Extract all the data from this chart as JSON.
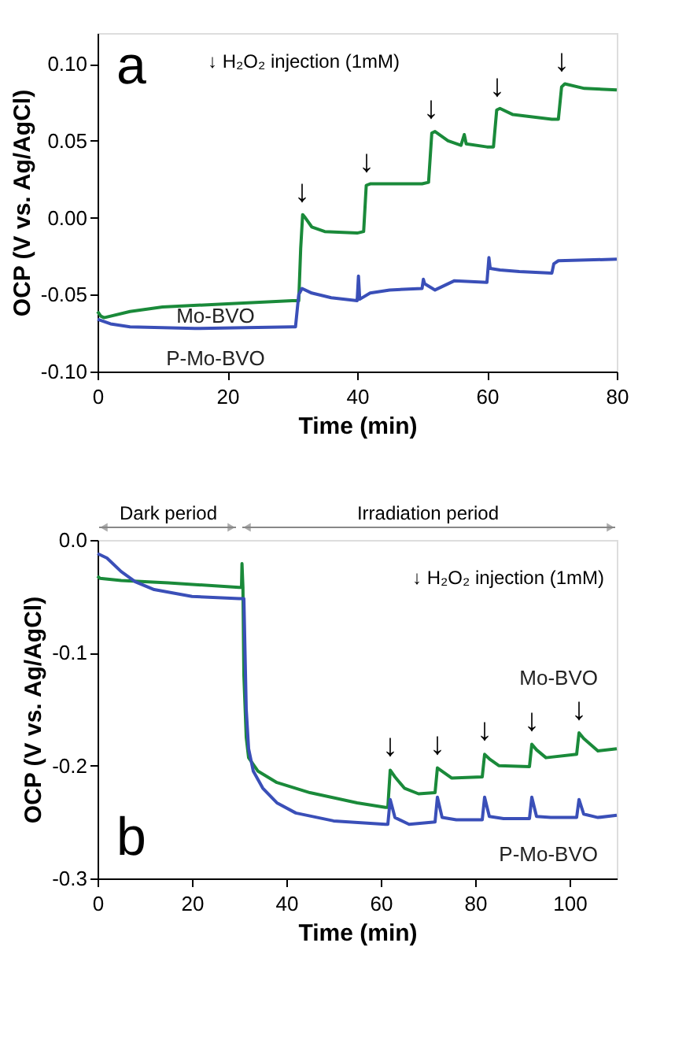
{
  "chart_data": [
    {
      "type": "line",
      "xlabel": "Time (min)",
      "ylabel": "OCP (V vs. Ag/AgCl)",
      "xlim": [
        0,
        80
      ],
      "xticks": [
        0,
        20,
        40,
        60,
        80
      ],
      "ylim": [
        -0.1,
        0.12
      ],
      "yticks": [
        {
          "value": -0.1,
          "label": "-0.10"
        },
        {
          "value": -0.05,
          "label": "-0.05"
        },
        {
          "value": 0,
          "label": "0.00"
        },
        {
          "value": 0.05,
          "label": "0.05"
        },
        {
          "value": 0.1,
          "label": "0.10"
        }
      ],
      "grid": false,
      "legend": false,
      "marker": "none",
      "line_style": "solid",
      "series": [
        {
          "name": "Mo-BVO",
          "color": "#1a8a3a",
          "x": [
            0,
            0.5,
            1,
            5,
            10,
            20,
            30,
            31,
            31.3,
            31.6,
            32,
            33,
            35,
            40,
            41,
            41.4,
            42,
            50,
            51,
            51.5,
            52,
            54,
            56,
            56.5,
            56.8,
            60,
            61,
            61.5,
            62,
            64,
            70,
            71,
            71.5,
            72,
            75,
            80
          ],
          "values": [
            -0.061,
            -0.064,
            -0.065,
            -0.061,
            -0.058,
            -0.056,
            -0.054,
            -0.054,
            -0.02,
            0.002,
            0.0,
            -0.006,
            -0.009,
            -0.01,
            -0.009,
            0.021,
            0.022,
            0.022,
            0.023,
            0.055,
            0.056,
            0.05,
            0.047,
            0.054,
            0.048,
            0.046,
            0.046,
            0.07,
            0.071,
            0.067,
            0.064,
            0.064,
            0.085,
            0.087,
            0.084,
            0.083
          ]
        },
        {
          "name": "P-Mo-BVO",
          "color": "#3a4fb8",
          "x": [
            0,
            2,
            5,
            15,
            30,
            30.5,
            31,
            31.5,
            33,
            36,
            40,
            40.2,
            40.4,
            42,
            45,
            50,
            50.2,
            50.4,
            52,
            55,
            60,
            60.3,
            60.5,
            62,
            65,
            70,
            70.3,
            71,
            80
          ],
          "values": [
            -0.066,
            -0.069,
            -0.071,
            -0.072,
            -0.071,
            -0.071,
            -0.05,
            -0.046,
            -0.049,
            -0.052,
            -0.054,
            -0.038,
            -0.053,
            -0.049,
            -0.047,
            -0.046,
            -0.04,
            -0.043,
            -0.047,
            -0.041,
            -0.042,
            -0.026,
            -0.033,
            -0.034,
            -0.035,
            -0.036,
            -0.03,
            -0.028,
            -0.027
          ]
        }
      ],
      "annotations": [
        "a",
        "↓ H₂O₂ injection (1mM)",
        "↓",
        "↓",
        "↓",
        "↓",
        "↓"
      ]
    },
    {
      "type": "line",
      "xlabel": "Time (min)",
      "ylabel": "OCP (V vs. Ag/AgCl)",
      "xlim": [
        0,
        110
      ],
      "xticks": [
        0,
        20,
        40,
        60,
        80,
        100
      ],
      "ylim": [
        -0.3,
        0
      ],
      "yticks": [
        {
          "value": -0.3,
          "label": "-0.3"
        },
        {
          "value": -0.2,
          "label": "-0.2"
        },
        {
          "value": -0.1,
          "label": "-0.1"
        },
        {
          "value": 0,
          "label": "0.0"
        }
      ],
      "grid": false,
      "legend": false,
      "marker": "none",
      "line_style": "solid",
      "series": [
        {
          "name": "Mo-BVO",
          "color": "#1a8a3a",
          "x": [
            0,
            0.5,
            5,
            15,
            30,
            30.5,
            30.6,
            30.8,
            31,
            31.5,
            32,
            34,
            38,
            45,
            55,
            61,
            61.5,
            62,
            63,
            65,
            68,
            71.5,
            72,
            73,
            75,
            81.5,
            82,
            83,
            85,
            91.5,
            92,
            93,
            95,
            101.5,
            102,
            103,
            106,
            110
          ],
          "values": [
            -0.032,
            -0.034,
            -0.036,
            -0.038,
            -0.042,
            -0.042,
            -0.021,
            -0.042,
            -0.12,
            -0.175,
            -0.193,
            -0.205,
            -0.215,
            -0.224,
            -0.233,
            -0.237,
            -0.237,
            -0.204,
            -0.21,
            -0.22,
            -0.225,
            -0.224,
            -0.202,
            -0.205,
            -0.211,
            -0.21,
            -0.19,
            -0.194,
            -0.2,
            -0.201,
            -0.181,
            -0.186,
            -0.193,
            -0.19,
            -0.171,
            -0.176,
            -0.187,
            -0.185
          ]
        },
        {
          "name": "P-Mo-BVO",
          "color": "#3a4fb8",
          "x": [
            0,
            2,
            5,
            8,
            12,
            20,
            30,
            31,
            31.5,
            32,
            33,
            35,
            38,
            42,
            50,
            61,
            61.5,
            62,
            63,
            66,
            71.5,
            72,
            73,
            76,
            81.5,
            82,
            83,
            86,
            91.5,
            92,
            93,
            96,
            101.5,
            102,
            103,
            106,
            110
          ],
          "values": [
            -0.012,
            -0.016,
            -0.028,
            -0.037,
            -0.044,
            -0.05,
            -0.052,
            -0.052,
            -0.15,
            -0.185,
            -0.205,
            -0.22,
            -0.233,
            -0.242,
            -0.249,
            -0.252,
            -0.252,
            -0.23,
            -0.246,
            -0.252,
            -0.25,
            -0.228,
            -0.246,
            -0.248,
            -0.248,
            -0.228,
            -0.245,
            -0.247,
            -0.247,
            -0.228,
            -0.245,
            -0.246,
            -0.246,
            -0.23,
            -0.243,
            -0.246,
            -0.244
          ]
        }
      ],
      "annotations": [
        "b",
        "↓ H₂O₂ injection (1mM)",
        "Dark period",
        "Irradiation period",
        "↓",
        "↓",
        "↓",
        "↓",
        "↓"
      ]
    }
  ]
}
